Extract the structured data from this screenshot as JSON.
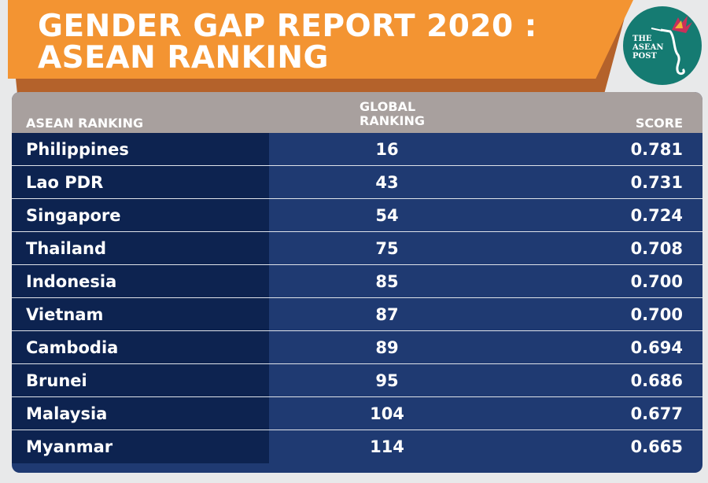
{
  "title_line1": "GENDER GAP REPORT 2020 :",
  "title_line2": "ASEAN RANKING",
  "logo_text": [
    "THE",
    "ASEAN",
    "POST"
  ],
  "colors": {
    "banner": "#f39432",
    "header": "#a8a09e",
    "row_left": "#0d2350",
    "row_right": "#1f3a72",
    "logo": "#157b72"
  },
  "chart_data": {
    "type": "table",
    "columns": [
      "ASEAN RANKING",
      "GLOBAL RANKING",
      "SCORE"
    ],
    "rows": [
      [
        "Philippines",
        "16",
        "0.781"
      ],
      [
        "Lao PDR",
        "43",
        "0.731"
      ],
      [
        "Singapore",
        "54",
        "0.724"
      ],
      [
        "Thailand",
        "75",
        "0.708"
      ],
      [
        "Indonesia",
        "85",
        "0.700"
      ],
      [
        "Vietnam",
        "87",
        "0.700"
      ],
      [
        "Cambodia",
        "89",
        "0.694"
      ],
      [
        "Brunei",
        "95",
        "0.686"
      ],
      [
        "Malaysia",
        "104",
        "0.677"
      ],
      [
        "Myanmar",
        "114",
        "0.665"
      ]
    ]
  },
  "header_global_line1": "GLOBAL",
  "header_global_line2": "RANKING"
}
